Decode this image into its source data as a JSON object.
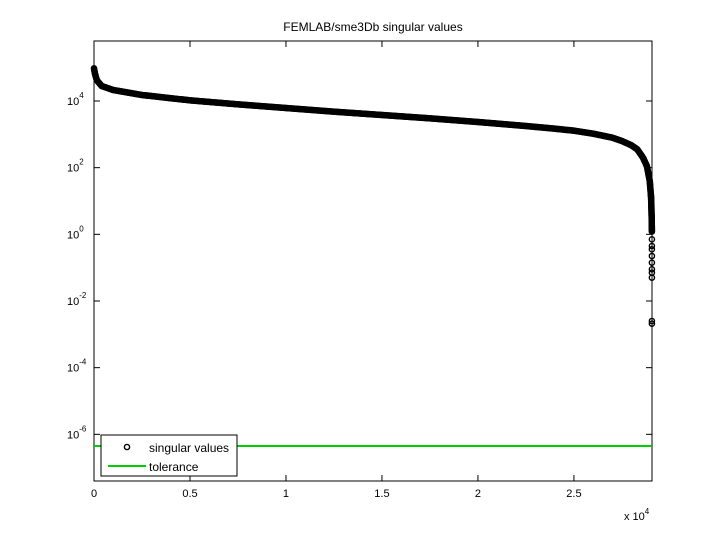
{
  "chart_data": {
    "type": "scatter",
    "title": "FEMLAB/sme3Db singular values",
    "xlabel": "",
    "ylabel": "",
    "x_exponent_label": {
      "prefix": "x 10",
      "exponent": "4"
    },
    "xlim": [
      0,
      29067
    ],
    "ylim_log10": [
      -7.4,
      5.8
    ],
    "yscale": "log",
    "grid": false,
    "legend_position": "bottom-left",
    "x_ticks": [
      {
        "value": 0,
        "label": "0"
      },
      {
        "value": 5000,
        "label": "0.5"
      },
      {
        "value": 10000,
        "label": "1"
      },
      {
        "value": 15000,
        "label": "1.5"
      },
      {
        "value": 20000,
        "label": "2"
      },
      {
        "value": 25000,
        "label": "2.5"
      }
    ],
    "y_ticks": [
      {
        "exp": 4,
        "base": "10",
        "label": "4"
      },
      {
        "exp": 2,
        "base": "10",
        "label": "2"
      },
      {
        "exp": 0,
        "base": "10",
        "label": "0"
      },
      {
        "exp": -2,
        "base": "10",
        "label": "-2"
      },
      {
        "exp": -4,
        "base": "10",
        "label": "-4"
      },
      {
        "exp": -6,
        "base": "10",
        "label": "-6"
      }
    ],
    "series": [
      {
        "name": "singular values",
        "marker": "open-circle",
        "color": "#000000",
        "curve_log10": [
          [
            0,
            4.98
          ],
          [
            50,
            4.82
          ],
          [
            150,
            4.62
          ],
          [
            400,
            4.45
          ],
          [
            1000,
            4.33
          ],
          [
            2500,
            4.18
          ],
          [
            5000,
            4.02
          ],
          [
            7500,
            3.9
          ],
          [
            10000,
            3.79
          ],
          [
            12500,
            3.68
          ],
          [
            15000,
            3.58
          ],
          [
            17500,
            3.48
          ],
          [
            20000,
            3.37
          ],
          [
            22500,
            3.25
          ],
          [
            24000,
            3.17
          ],
          [
            25000,
            3.11
          ],
          [
            26000,
            3.02
          ],
          [
            27000,
            2.9
          ],
          [
            27500,
            2.8
          ],
          [
            28000,
            2.67
          ],
          [
            28300,
            2.55
          ],
          [
            28600,
            2.3
          ],
          [
            28800,
            2.05
          ],
          [
            28950,
            1.6
          ],
          [
            29020,
            1.1
          ],
          [
            29050,
            0.5
          ],
          [
            29062,
            0.05
          ]
        ],
        "tail_points": [
          [
            29062,
            0.22
          ],
          [
            29062,
            0.15
          ],
          [
            29062,
            -0.15
          ],
          [
            29062,
            -0.35
          ],
          [
            29062,
            -0.45
          ],
          [
            29062,
            -0.65
          ],
          [
            29062,
            -0.85
          ],
          [
            29062,
            -1.05
          ],
          [
            29062,
            -1.15
          ],
          [
            29062,
            -1.3
          ],
          [
            29062,
            -2.6
          ],
          [
            29062,
            -2.68
          ]
        ]
      },
      {
        "name": "tolerance",
        "marker": "line",
        "color": "#00cc00",
        "value_log10": -6.35
      }
    ]
  }
}
